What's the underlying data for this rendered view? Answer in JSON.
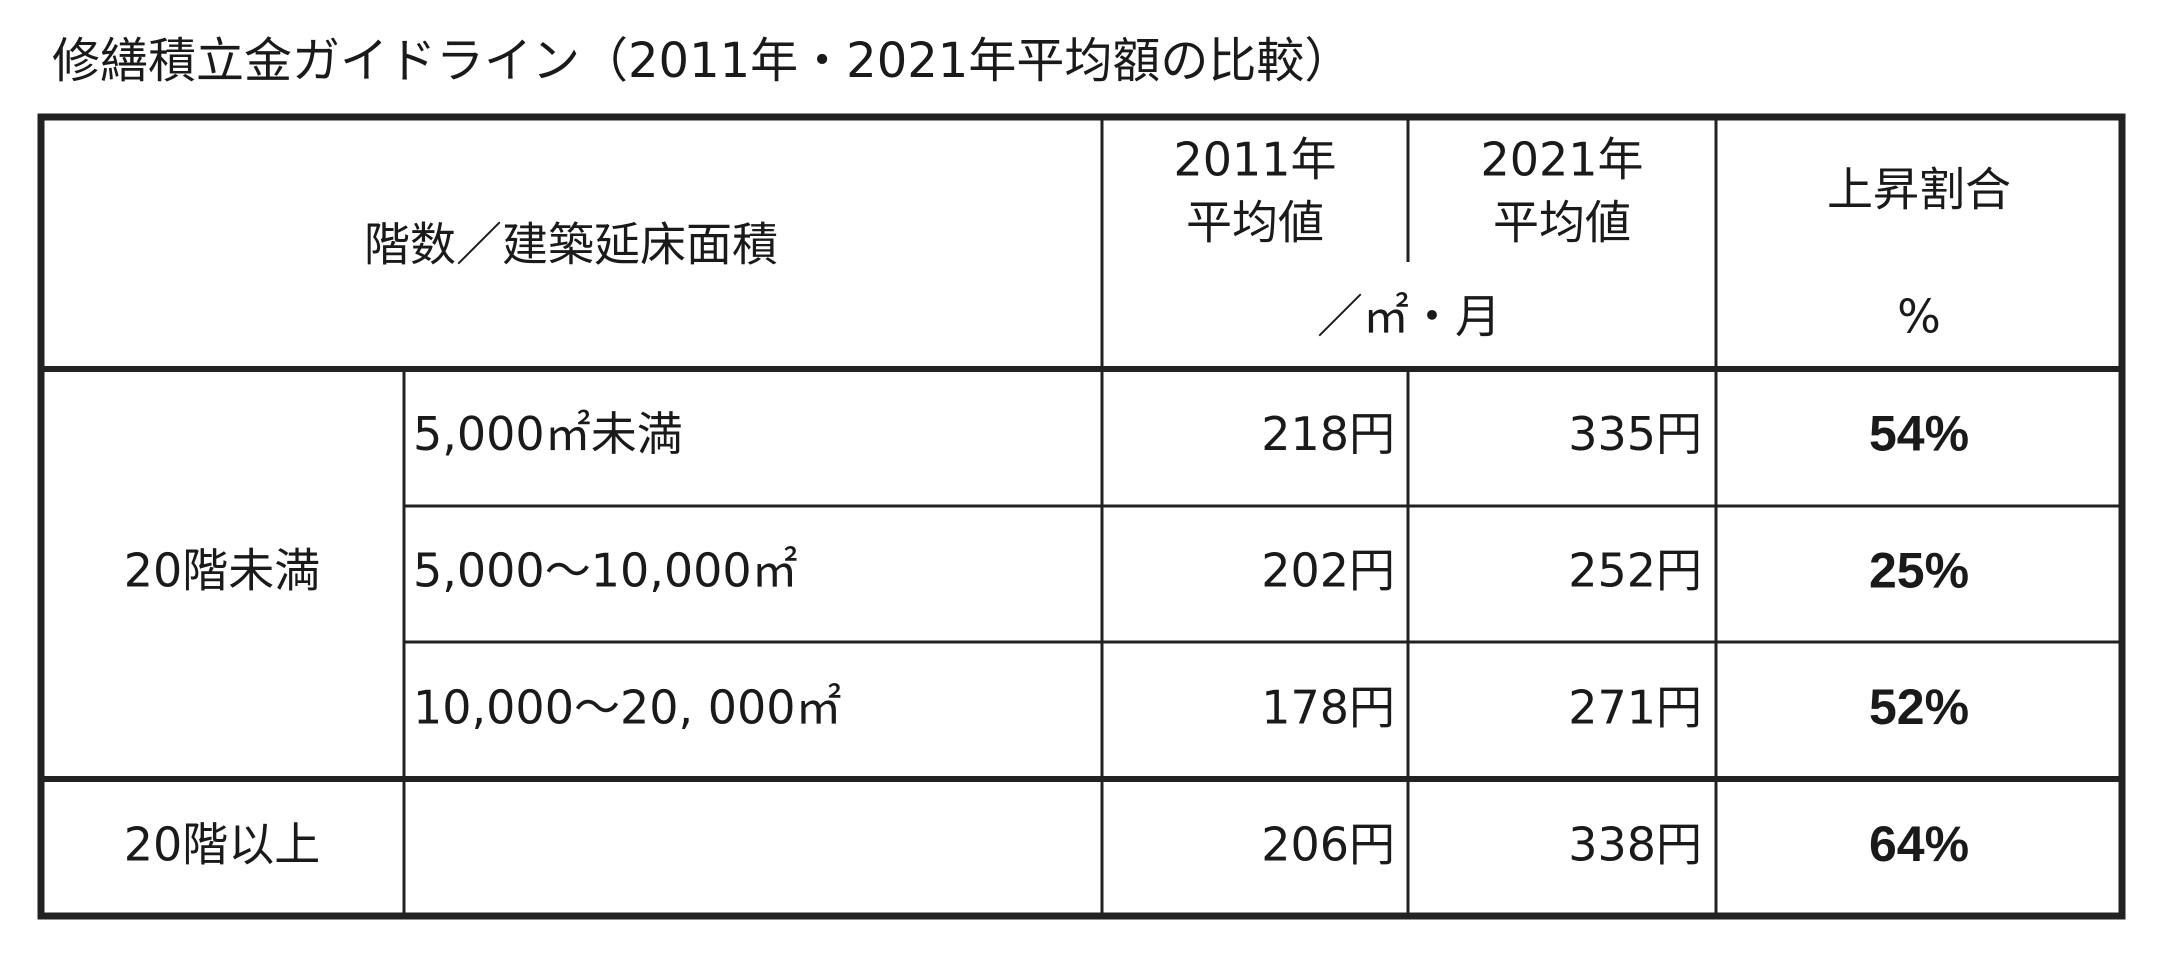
{
  "title": "修繕積立金ガイドライン（2011年・2021年平均額の比較）",
  "table": {
    "header": {
      "category": "階数／建築延床面積",
      "col_2011": [
        "2011年",
        "平均値"
      ],
      "col_2021": [
        "2021年",
        "平均値"
      ],
      "unit": "／㎡・月",
      "rate": "上昇割合",
      "rate_unit": "%"
    },
    "groups": [
      {
        "label": "20階未満",
        "rows": [
          {
            "area": "5,000㎡未満",
            "y2011": "218円",
            "y2021": "335円",
            "rate": "54%"
          },
          {
            "area": "5,000～10,000㎡",
            "y2011": "202円",
            "y2021": "252円",
            "rate": "25%"
          },
          {
            "area": "10,000～20, 000㎡",
            "y2011": "178円",
            "y2021": "271円",
            "rate": "52%"
          }
        ]
      },
      {
        "label": "20階以上",
        "rows": [
          {
            "y2011": "206円",
            "y2021": "338円",
            "rate": "64%"
          }
        ]
      }
    ]
  }
}
